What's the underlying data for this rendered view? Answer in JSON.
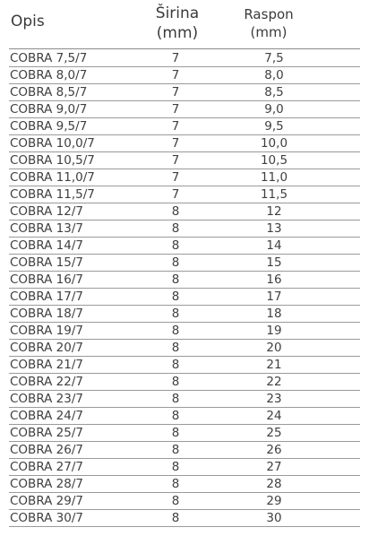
{
  "header": {
    "opis": "Opis",
    "sirina_line1": "Širina",
    "sirina_line2": "(mm)",
    "raspon_line1": "Raspon",
    "raspon_line2": "(mm)"
  },
  "rows": [
    {
      "opis": "COBRA 7,5/7",
      "sirina": "7",
      "raspon": "7,5"
    },
    {
      "opis": "COBRA 8,0/7",
      "sirina": "7",
      "raspon": "8,0"
    },
    {
      "opis": "COBRA 8,5/7",
      "sirina": "7",
      "raspon": "8,5"
    },
    {
      "opis": "COBRA 9,0/7",
      "sirina": "7",
      "raspon": "9,0"
    },
    {
      "opis": "COBRA 9,5/7",
      "sirina": "7",
      "raspon": "9,5"
    },
    {
      "opis": "COBRA 10,0/7",
      "sirina": "7",
      "raspon": "10,0"
    },
    {
      "opis": "COBRA 10,5/7",
      "sirina": "7",
      "raspon": "10,5"
    },
    {
      "opis": "COBRA 11,0/7",
      "sirina": "7",
      "raspon": "11,0"
    },
    {
      "opis": "COBRA 11,5/7",
      "sirina": "7",
      "raspon": "11,5"
    },
    {
      "opis": "COBRA 12/7",
      "sirina": "8",
      "raspon": "12"
    },
    {
      "opis": "COBRA 13/7",
      "sirina": "8",
      "raspon": "13"
    },
    {
      "opis": "COBRA 14/7",
      "sirina": "8",
      "raspon": "14"
    },
    {
      "opis": "COBRA 15/7",
      "sirina": "8",
      "raspon": "15"
    },
    {
      "opis": "COBRA 16/7",
      "sirina": "8",
      "raspon": "16"
    },
    {
      "opis": "COBRA 17/7",
      "sirina": "8",
      "raspon": "17"
    },
    {
      "opis": "COBRA 18/7",
      "sirina": "8",
      "raspon": "18"
    },
    {
      "opis": "COBRA 19/7",
      "sirina": "8",
      "raspon": "19"
    },
    {
      "opis": "COBRA 20/7",
      "sirina": "8",
      "raspon": "20"
    },
    {
      "opis": "COBRA 21/7",
      "sirina": "8",
      "raspon": "21"
    },
    {
      "opis": "COBRA 22/7",
      "sirina": "8",
      "raspon": "22"
    },
    {
      "opis": "COBRA 23/7",
      "sirina": "8",
      "raspon": "23"
    },
    {
      "opis": "COBRA 24/7",
      "sirina": "8",
      "raspon": "24"
    },
    {
      "opis": "COBRA 25/7",
      "sirina": "8",
      "raspon": "25"
    },
    {
      "opis": "COBRA 26/7",
      "sirina": "8",
      "raspon": "26"
    },
    {
      "opis": "COBRA 27/7",
      "sirina": "8",
      "raspon": "27"
    },
    {
      "opis": "COBRA 28/7",
      "sirina": "8",
      "raspon": "28"
    },
    {
      "opis": "COBRA 29/7",
      "sirina": "8",
      "raspon": "29"
    },
    {
      "opis": "COBRA 30/7",
      "sirina": "8",
      "raspon": "30"
    }
  ]
}
